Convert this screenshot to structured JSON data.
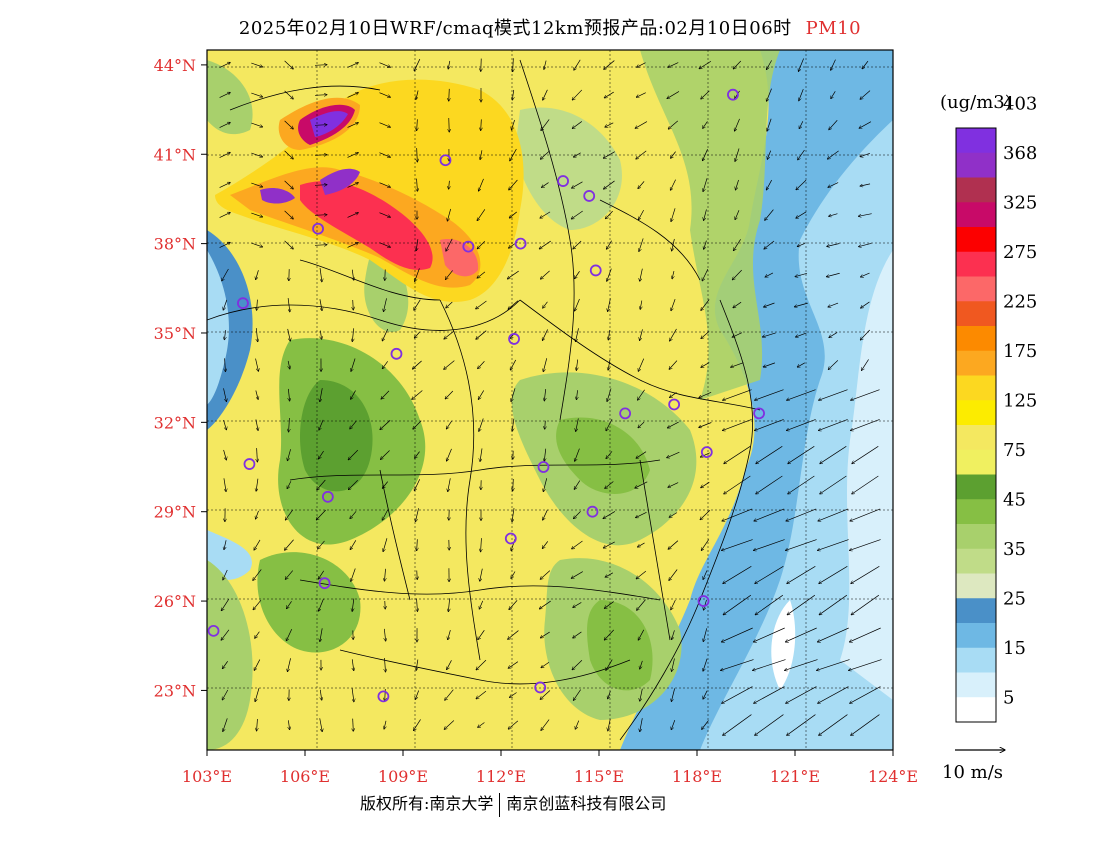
{
  "title": {
    "main": "2025年02月10日WRF/cmaq模式12km预报产品:02月10日06时",
    "pollutant": "PM10"
  },
  "axes": {
    "lat_labels": [
      "44°N",
      "41°N",
      "38°N",
      "35°N",
      "32°N",
      "29°N",
      "26°N",
      "23°N"
    ],
    "lon_labels": [
      "103°E",
      "106°E",
      "109°E",
      "112°E",
      "115°E",
      "118°E",
      "121°E",
      "124°E"
    ],
    "lat_range": [
      21,
      44.5
    ],
    "lon_range": [
      103,
      124
    ]
  },
  "colorbar": {
    "unit": "(ug/m3)",
    "colors": [
      "#ffffff",
      "#d8f0fb",
      "#a8dcf4",
      "#6eb8e4",
      "#4a90c8",
      "#dde8c0",
      "#c0dc88",
      "#a8d06c",
      "#86bf44",
      "#5ca030",
      "#f0f060",
      "#f4e860",
      "#fcec00",
      "#fcd820",
      "#fca820",
      "#fc8a00",
      "#f05820",
      "#fc6868",
      "#fc3050",
      "#fc0000",
      "#c80a68",
      "#b03050",
      "#9030c8",
      "#8030e0"
    ],
    "labels": [
      "5",
      "15",
      "25",
      "35",
      "45",
      "75",
      "125",
      "175",
      "225",
      "275",
      "325",
      "368",
      "403"
    ]
  },
  "wind": {
    "ref_label": "10 m/s"
  },
  "stations": [
    [
      119.1,
      43.0
    ],
    [
      110.3,
      40.8
    ],
    [
      113.9,
      40.1
    ],
    [
      114.7,
      39.6
    ],
    [
      106.4,
      38.5
    ],
    [
      112.6,
      38.0
    ],
    [
      111.0,
      37.9
    ],
    [
      114.9,
      37.1
    ],
    [
      104.1,
      36.0
    ],
    [
      112.4,
      34.8
    ],
    [
      108.8,
      34.3
    ],
    [
      117.3,
      32.6
    ],
    [
      115.8,
      32.3
    ],
    [
      119.9,
      32.3
    ],
    [
      118.3,
      31.0
    ],
    [
      104.3,
      30.6
    ],
    [
      113.3,
      30.5
    ],
    [
      106.7,
      29.5
    ],
    [
      114.8,
      29.0
    ],
    [
      112.3,
      28.1
    ],
    [
      106.6,
      26.6
    ],
    [
      118.2,
      26.0
    ],
    [
      103.2,
      25.0
    ],
    [
      108.4,
      22.8
    ],
    [
      113.2,
      23.1
    ]
  ],
  "footer": {
    "left": "版权所有:南京大学",
    "right": "南京创蓝科技有限公司"
  }
}
